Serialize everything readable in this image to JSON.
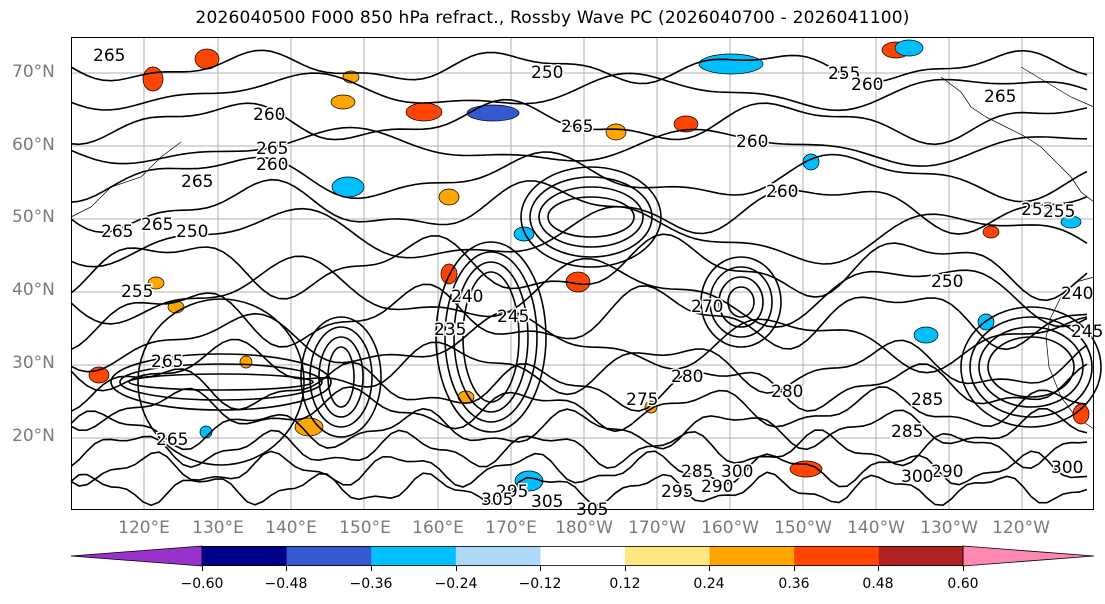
{
  "title": "2026040500 F000 850 hPa refract., Rossby Wave PC (2026040700 - 2026041100)",
  "map": {
    "projection": "cylindrical",
    "lat_range": [
      10,
      75
    ],
    "lon_range": [
      "111°E",
      "111°W"
    ],
    "lat_labels": [
      "70°N",
      "60°N",
      "50°N",
      "40°N",
      "30°N",
      "20°N"
    ],
    "lon_labels": [
      "120°E",
      "130°E",
      "140°E",
      "150°E",
      "160°E",
      "170°E",
      "180°W",
      "170°W",
      "160°W",
      "150°W",
      "140°W",
      "130°W",
      "120°W"
    ],
    "grid": true,
    "gridline_color": "#b0b0b0",
    "contour_color": "#000000",
    "contour_labels": [
      "265",
      "250",
      "255",
      "260",
      "265",
      "260",
      "265",
      "260",
      "265",
      "265",
      "255",
      "260",
      "255",
      "265",
      "250",
      "240",
      "235",
      "245",
      "240",
      "290",
      "300",
      "305",
      "300",
      "285",
      "275",
      "280",
      "260",
      "270",
      "265",
      "265",
      "285",
      "290",
      "295",
      "295",
      "305",
      "305",
      "300",
      "285",
      "280",
      "250",
      "245",
      "265",
      "255"
    ]
  },
  "colorbar": {
    "ticks": [
      "−0.60",
      "−0.48",
      "−0.36",
      "−0.24",
      "−0.12",
      "0.12",
      "0.24",
      "0.36",
      "0.48",
      "0.60"
    ],
    "colors": [
      "#9932cc",
      "#00008b",
      "#3458d0",
      "#00bfff",
      "#add8f7",
      "#ffffff",
      "#ffe680",
      "#ffa500",
      "#ff4500",
      "#b22222",
      "#ff88b0"
    ],
    "extend": "both"
  }
}
